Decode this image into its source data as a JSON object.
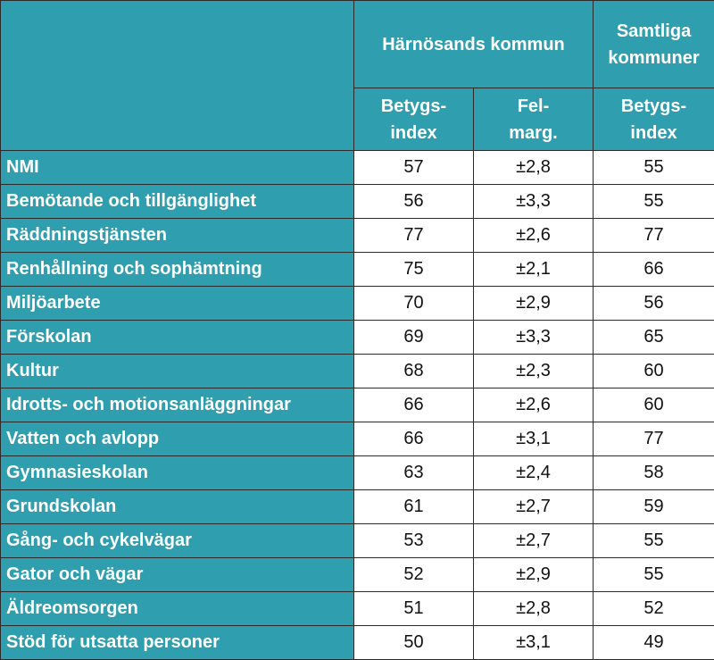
{
  "header": {
    "group_municipality": "Härnösands kommun",
    "group_all": "Samtliga\nkommuner",
    "col_index": "Betygs-\nindex",
    "col_margin": "Fel-\nmarg.",
    "col_all_index": "Betygs-\nindex"
  },
  "table": {
    "rows": [
      [
        "NMI",
        57,
        "±2,8",
        55
      ],
      [
        "Bemötande och tillgänglighet",
        56,
        "±3,3",
        55
      ],
      [
        "Räddningstjänsten",
        77,
        "±2,6",
        77
      ],
      [
        "Renhållning och sophämtning",
        75,
        "±2,1",
        66
      ],
      [
        "Miljöarbete",
        70,
        "±2,9",
        56
      ],
      [
        "Förskolan",
        69,
        "±3,3",
        65
      ],
      [
        "Kultur",
        68,
        "±2,3",
        60
      ],
      [
        "Idrotts- och motionsanläggningar",
        66,
        "±2,6",
        60
      ],
      [
        "Vatten och avlopp",
        66,
        "±3,1",
        77
      ],
      [
        "Gymnasieskolan",
        63,
        "±2,4",
        58
      ],
      [
        "Grundskolan",
        61,
        "±2,7",
        59
      ],
      [
        "Gång- och cykelvägar",
        53,
        "±2,7",
        55
      ],
      [
        "Gator och vägar",
        52,
        "±2,9",
        55
      ],
      [
        "Äldreomsorgen",
        51,
        "±2,8",
        52
      ],
      [
        "Stöd för utsatta personer",
        50,
        "±3,1",
        49
      ]
    ]
  }
}
